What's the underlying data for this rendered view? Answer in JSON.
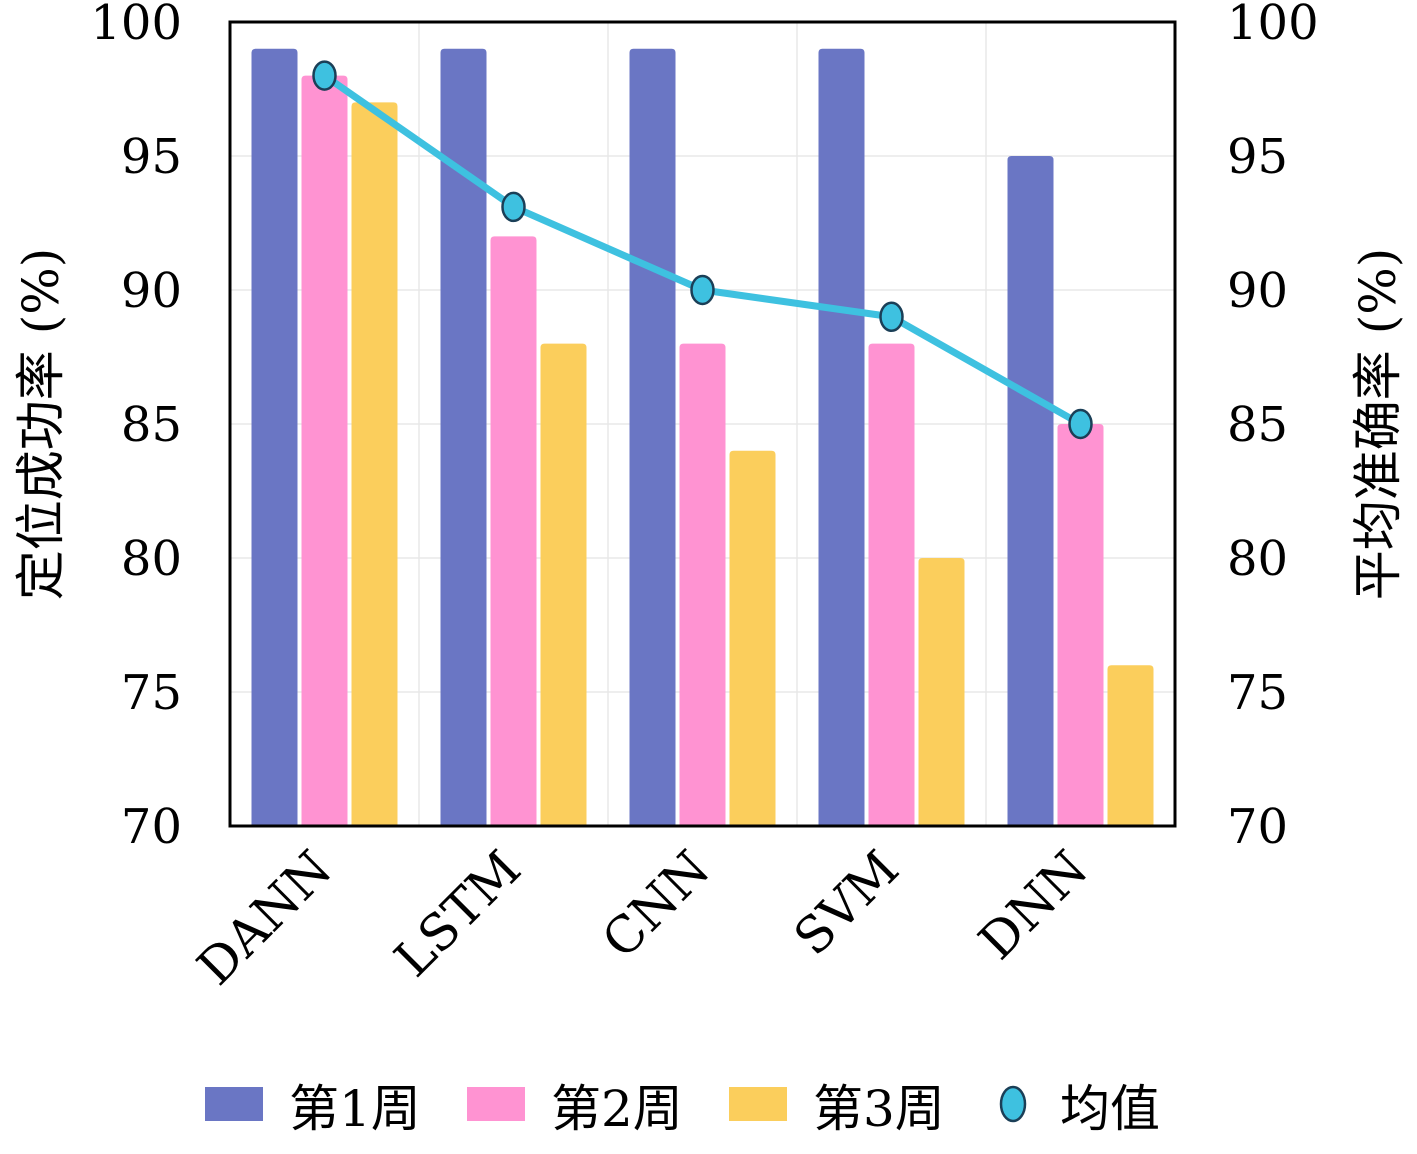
{
  "chart_data": {
    "type": "bar",
    "categories": [
      "DANN",
      "LSTM",
      "CNN",
      "SVM",
      "DNN"
    ],
    "series": [
      {
        "name": "第1周",
        "color": "#6a76c4",
        "values": [
          99,
          99,
          99,
          99,
          95
        ]
      },
      {
        "name": "第2周",
        "color": "#ff93d2",
        "values": [
          98,
          92,
          88,
          88,
          85
        ]
      },
      {
        "name": "第3周",
        "color": "#fbce5c",
        "values": [
          97,
          88,
          84,
          80,
          76
        ]
      }
    ],
    "line_series": {
      "name": "均值",
      "color": "#3ec1e0",
      "values": [
        98.0,
        93.1,
        90.0,
        89.0,
        85.0
      ]
    },
    "ylabel_left": "定位成功率 (%)",
    "ylabel_right": "平均准确率 (%)",
    "ylim": [
      70,
      100
    ],
    "yticks": [
      "70",
      "75",
      "80",
      "85",
      "90",
      "95",
      "100"
    ],
    "grid": true,
    "legend_position": "bottom"
  }
}
